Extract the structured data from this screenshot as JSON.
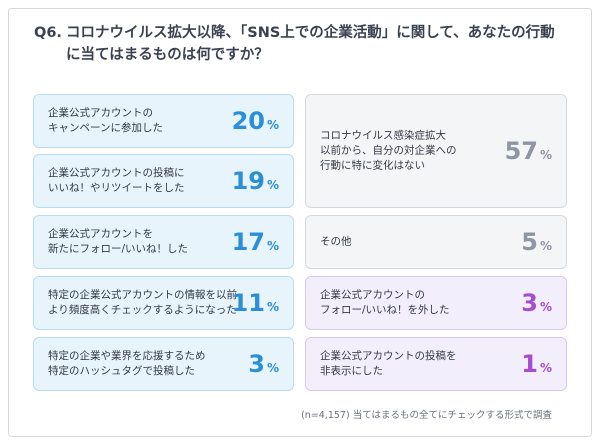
{
  "question": {
    "number": "Q6.",
    "line1": "コロナウイルス拡大以降、「SNS上での企業活動」に関して、あなたの行動",
    "line2": "に当てはまるものは何ですか？"
  },
  "left_items": [
    {
      "line1": "企業公式アカウントの",
      "line2": "キャンペーンに参加した",
      "value": "20",
      "unit": "%"
    },
    {
      "line1": "企業公式アカウントの投稿に",
      "line2": "いいね！やリツイートをした",
      "value": "19",
      "unit": "%"
    },
    {
      "line1": "企業公式アカウントを",
      "line2": "新たにフォロー/いいね！した",
      "value": "17",
      "unit": "%"
    },
    {
      "line1": "特定の企業公式アカウントの情報を以前",
      "line2": "より頻度高くチェックするようになった",
      "value": "11",
      "unit": "%"
    },
    {
      "line1": "特定の企業や業界を応援するため",
      "line2": "特定のハッシュタグで投稿した",
      "value": "3",
      "unit": "%"
    }
  ],
  "right_items": [
    {
      "line1": "コロナウイルス感染症拡大",
      "line2": "以前から、自分の対企業への",
      "line3": "行動に特に変化はない",
      "value": "57",
      "unit": "%"
    },
    {
      "line1": "その他",
      "value": "5",
      "unit": "%"
    },
    {
      "line1": "企業公式アカウントの",
      "line2": "フォロー/いいね！を外した",
      "value": "3",
      "unit": "%"
    },
    {
      "line1": "企業公式アカウントの投稿を",
      "line2": "非表示にした",
      "value": "1",
      "unit": "%"
    }
  ],
  "footnote": "(n=4,157)  当てはまるもの全てにチェックする形式で調査",
  "colors": {
    "positive": "#2a8fd8",
    "neutral": "#8f96a3",
    "negative": "#a54fd0"
  },
  "chart_data": {
    "type": "table",
    "title": "Q6. コロナウイルス拡大以降、「SNS上での企業活動」に関して、あなたの行動に当てはまるものは何ですか？",
    "unit": "%",
    "categories": [
      "企業公式アカウントのキャンペーンに参加した",
      "企業公式アカウントの投稿にいいね！やリツイートをした",
      "企業公式アカウントを新たにフォロー/いいね！した",
      "特定の企業公式アカウントの情報を以前より頻度高くチェックするようになった",
      "特定の企業や業界を応援するため特定のハッシュタグで投稿した",
      "コロナウイルス感染症拡大以前から、自分の対企業への行動に特に変化はない",
      "その他",
      "企業公式アカウントのフォロー/いいね！を外した",
      "企業公式アカウントの投稿を非表示にした"
    ],
    "values": [
      20,
      19,
      17,
      11,
      3,
      57,
      5,
      3,
      1
    ],
    "note": "(n=4,157)  当てはまるもの全てにチェックする形式で調査"
  }
}
